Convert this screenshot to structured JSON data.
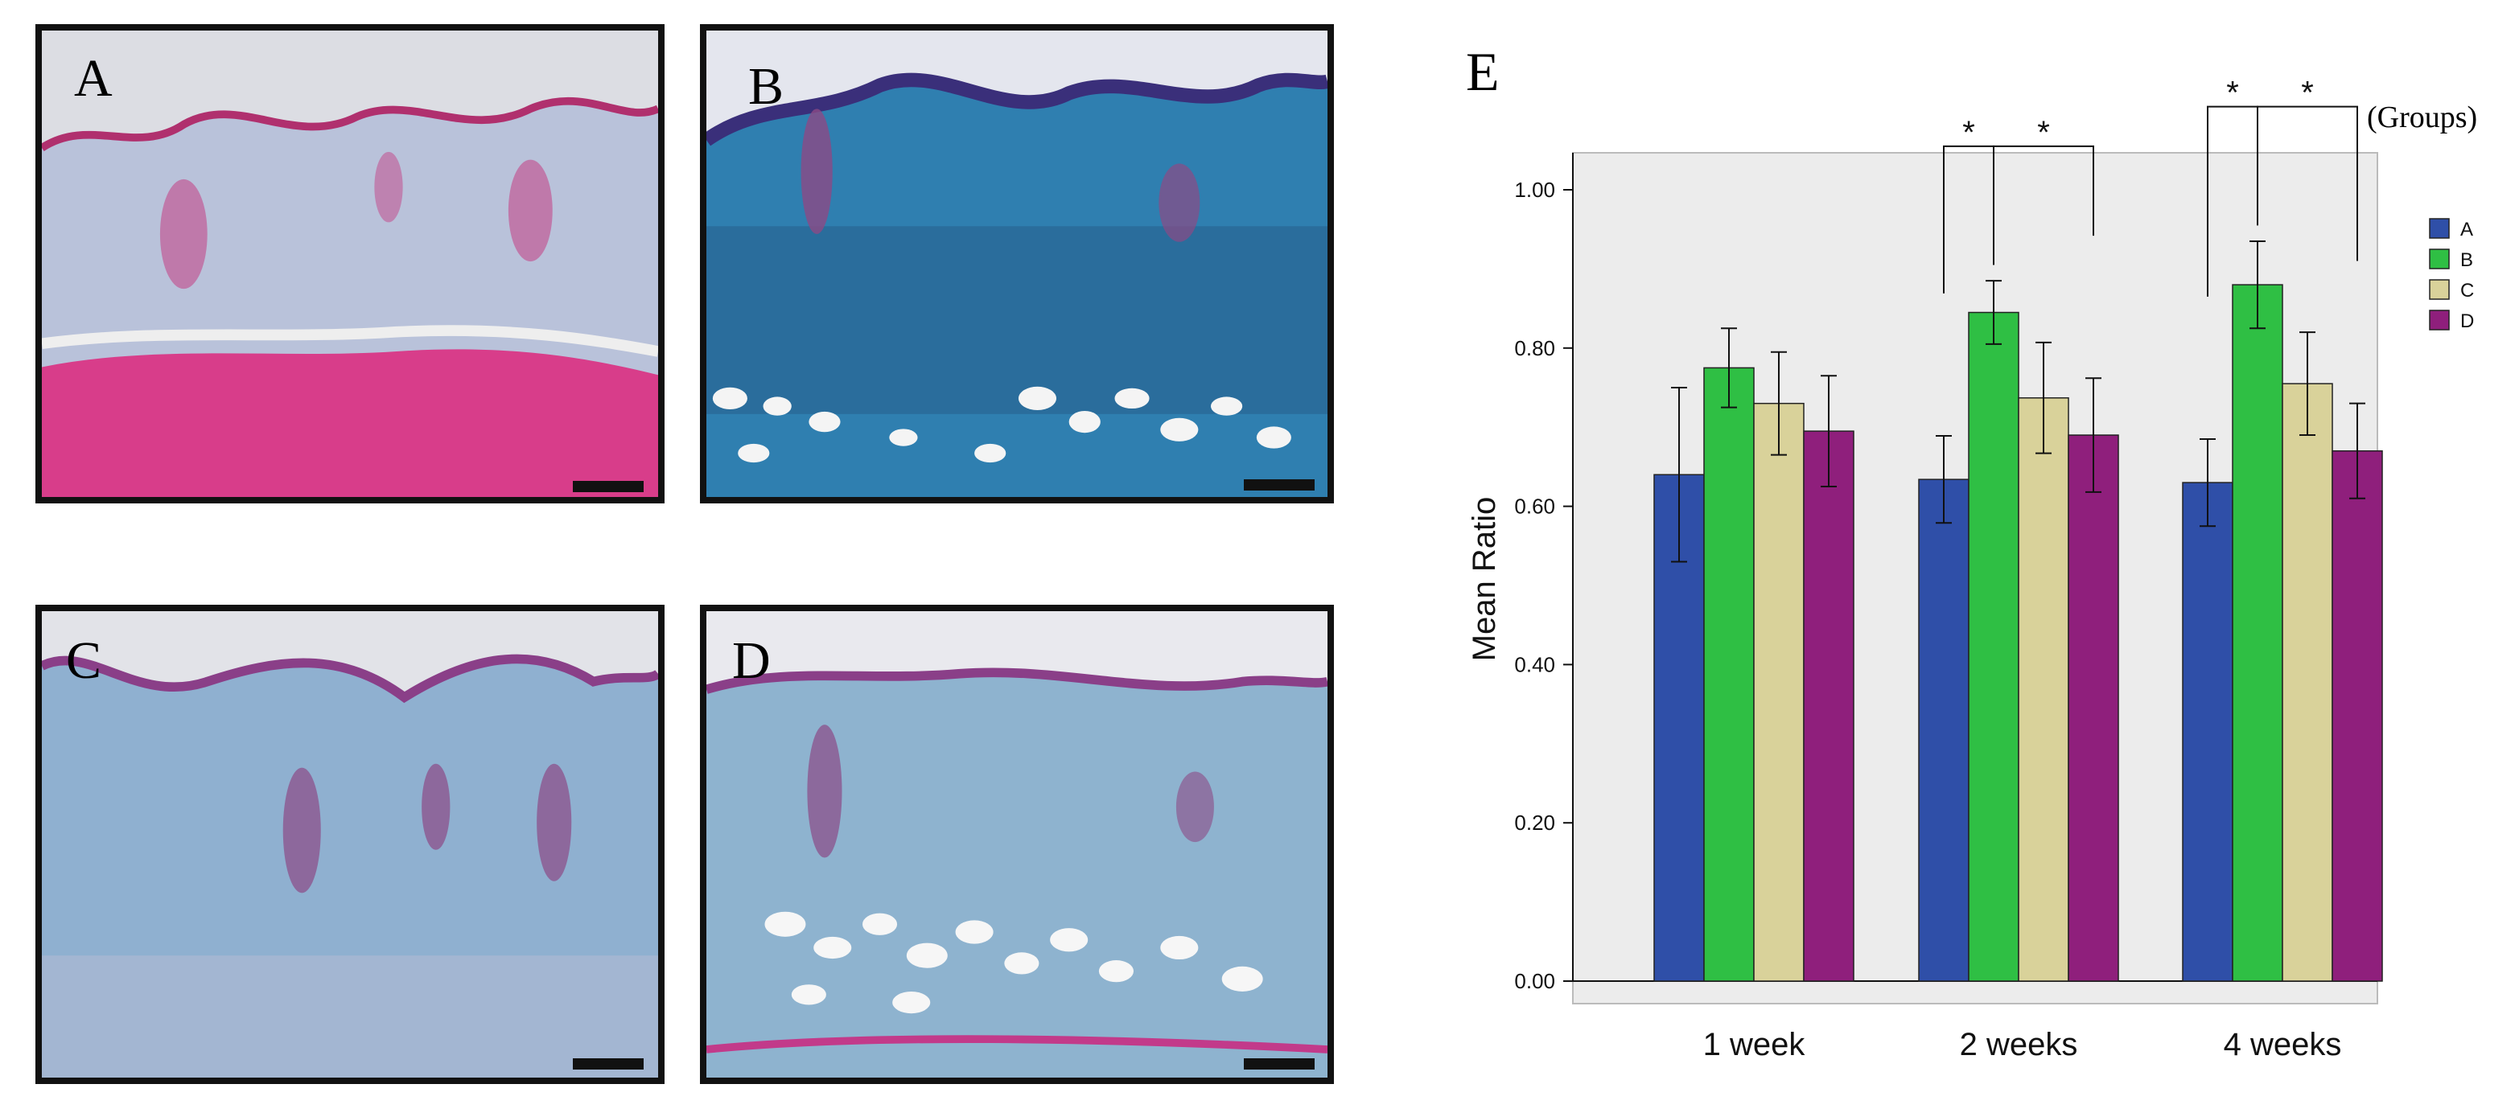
{
  "panels": [
    {
      "label": "A",
      "stain": "pink"
    },
    {
      "label": "B",
      "stain": "blue-dense"
    },
    {
      "label": "C",
      "stain": "blue"
    },
    {
      "label": "D",
      "stain": "blue-fat"
    }
  ],
  "colors": {
    "A": "#2f4fa8",
    "B": "#2fbf44",
    "C": "#d9d29a",
    "D": "#8f1f7c",
    "plot_bg": "#ececec"
  },
  "chart_data": {
    "type": "bar",
    "panel_label": "E",
    "legend_title": "(Groups)",
    "ylabel": "Mean Ratio",
    "xlabel": "",
    "ylim": [
      0,
      1.1
    ],
    "yticks": [
      "0.00",
      "0.20",
      "0.40",
      "0.60",
      "0.80",
      "1.00"
    ],
    "categories": [
      "1 week",
      "2 weeks",
      "4 weeks"
    ],
    "series": [
      {
        "name": "A",
        "values": [
          0.64,
          0.634,
          0.63
        ],
        "err": [
          0.11,
          0.055,
          0.055
        ]
      },
      {
        "name": "B",
        "values": [
          0.775,
          0.845,
          0.88
        ],
        "err": [
          0.05,
          0.04,
          0.055
        ]
      },
      {
        "name": "C",
        "values": [
          0.73,
          0.737,
          0.755
        ],
        "err": [
          0.065,
          0.07,
          0.065
        ]
      },
      {
        "name": "D",
        "values": [
          0.695,
          0.69,
          0.67
        ],
        "err": [
          0.07,
          0.072,
          0.06
        ]
      }
    ],
    "significance": [
      {
        "category": "2 weeks",
        "from": "A",
        "to": "B",
        "mark": "*"
      },
      {
        "category": "2 weeks",
        "from": "B",
        "to": "D",
        "mark": "*"
      },
      {
        "category": "4 weeks",
        "from": "A",
        "to": "B",
        "mark": "*"
      },
      {
        "category": "4 weeks",
        "from": "B",
        "to": "D",
        "mark": "*"
      }
    ],
    "legend_position": "right",
    "grid": false
  }
}
